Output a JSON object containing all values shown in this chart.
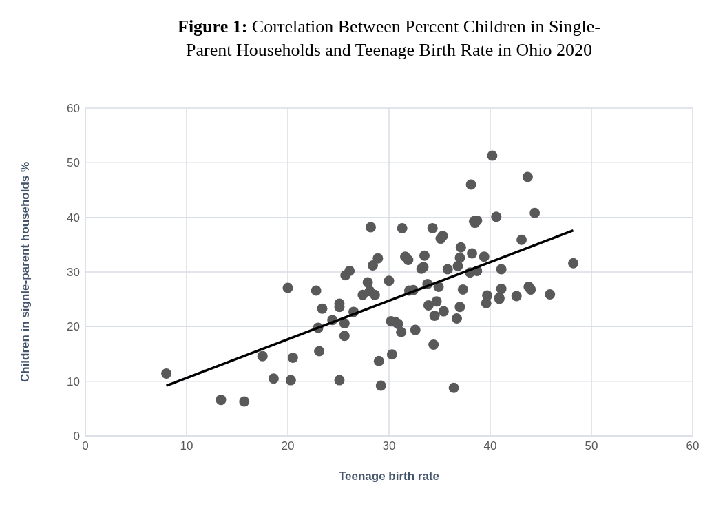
{
  "chart_data": {
    "type": "scatter",
    "title": "Figure 1: Correlation Between Percent Children in Single-Parent Households and Teenage Birth Rate in Ohio 2020",
    "xlabel": "Teenage birth rate",
    "ylabel": "Children in signle-parent households %",
    "xlim": [
      0,
      60
    ],
    "xticks": [
      0,
      10,
      20,
      30,
      40,
      50,
      60
    ],
    "ylim": [
      0,
      60
    ],
    "yticks": [
      0,
      10,
      20,
      30,
      40,
      50,
      60
    ],
    "grid": true,
    "legend": false,
    "marker": "circle",
    "series": [
      {
        "color": "#595959",
        "x": [
          8.0,
          13.4,
          15.7,
          17.5,
          18.6,
          20.0,
          20.3,
          20.5,
          22.8,
          23.0,
          23.1,
          23.4,
          24.4,
          25.1,
          25.1,
          25.1,
          25.6,
          25.6,
          25.7,
          26.1,
          26.5,
          27.4,
          27.9,
          28.1,
          28.2,
          28.4,
          28.6,
          28.9,
          29.0,
          29.2,
          30.0,
          30.2,
          30.3,
          30.6,
          30.9,
          31.2,
          31.3,
          31.6,
          31.9,
          32.0,
          32.4,
          32.6,
          33.2,
          33.4,
          33.5,
          33.8,
          33.9,
          34.3,
          34.4,
          34.5,
          34.7,
          34.9,
          35.1,
          35.3,
          35.4,
          35.8,
          36.4,
          36.7,
          36.8,
          37.0,
          37.0,
          37.1,
          37.3,
          38.0,
          38.1,
          38.2,
          38.4,
          38.5,
          38.7,
          38.7,
          39.4,
          39.6,
          39.7,
          40.2,
          40.6,
          40.9,
          40.9,
          41.1,
          41.1,
          42.6,
          43.1,
          43.7,
          43.8,
          44.0,
          44.4,
          45.9,
          48.2
        ],
        "values": [
          11.4,
          6.6,
          6.3,
          14.6,
          10.5,
          27.1,
          10.2,
          14.3,
          26.6,
          19.8,
          15.5,
          23.3,
          21.2,
          24.2,
          23.6,
          10.2,
          20.6,
          18.3,
          29.4,
          30.2,
          22.7,
          25.8,
          28.1,
          26.5,
          38.2,
          31.2,
          25.8,
          32.5,
          13.7,
          9.2,
          28.4,
          21.0,
          14.9,
          20.9,
          20.5,
          19.0,
          38.0,
          32.8,
          32.2,
          26.6,
          26.7,
          19.4,
          30.6,
          30.9,
          33.0,
          27.8,
          23.9,
          38.0,
          16.7,
          22.0,
          24.6,
          27.3,
          36.1,
          36.6,
          22.8,
          30.5,
          8.8,
          21.5,
          31.1,
          23.6,
          32.6,
          34.5,
          26.8,
          29.9,
          46.0,
          33.4,
          39.3,
          39.0,
          30.2,
          39.4,
          32.8,
          24.3,
          25.7,
          51.3,
          40.1,
          25.1,
          25.3,
          30.5,
          26.9,
          25.6,
          35.9,
          47.4,
          27.3,
          26.8,
          40.8,
          25.9,
          31.6
        ]
      },
      {
        "type": "line",
        "marker": "none",
        "color": "#000000",
        "x": [
          8.0,
          48.2
        ],
        "values": [
          9.2,
          37.6
        ]
      }
    ]
  }
}
